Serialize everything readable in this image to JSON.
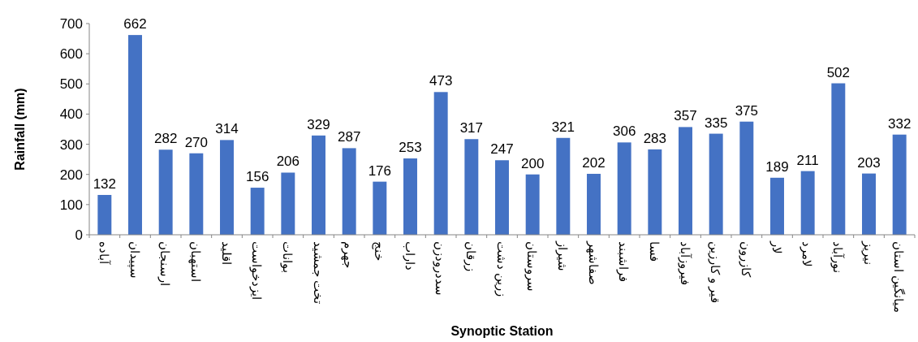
{
  "chart_data": {
    "type": "bar",
    "xlabel": "Synoptic Station",
    "ylabel": "Rainfall (mm)",
    "categories": [
      "آباده",
      "سپیدان",
      "ارسنجان",
      "استهبان",
      "اقلید",
      "ایزدخواست",
      "بوانات",
      "تخت جمشید",
      "جهرم",
      "خنج",
      "داراب",
      "سددرودزن",
      "زرقان",
      "زرین دشت",
      "سروستان",
      "شیراز",
      "صفاشهر",
      "فراشبند",
      "فسا",
      "فیروزآباد",
      "قیر و کارزین",
      "کازرون",
      "لار",
      "لامرد",
      "نورآباد",
      "نیریز",
      "میانگین استان"
    ],
    "values": [
      132,
      662,
      282,
      270,
      314,
      156,
      206,
      329,
      287,
      176,
      253,
      473,
      317,
      247,
      200,
      321,
      202,
      306,
      283,
      357,
      335,
      375,
      189,
      211,
      502,
      203,
      332
    ],
    "color": "#4472c4",
    "ylim": [
      0,
      700
    ],
    "yticks": [
      0,
      100,
      200,
      300,
      400,
      500,
      600,
      700
    ],
    "data_labels": true,
    "grid": false
  }
}
